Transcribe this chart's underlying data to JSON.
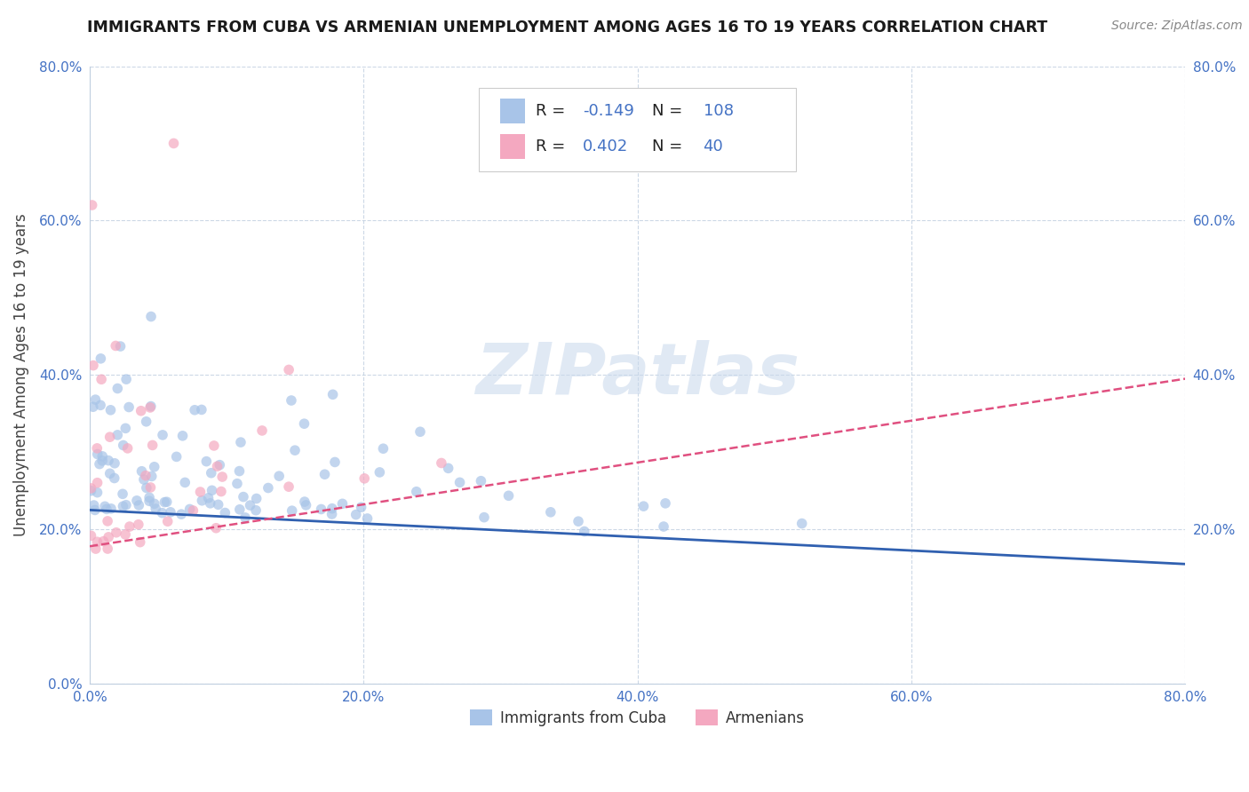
{
  "title": "IMMIGRANTS FROM CUBA VS ARMENIAN UNEMPLOYMENT AMONG AGES 16 TO 19 YEARS CORRELATION CHART",
  "source": "Source: ZipAtlas.com",
  "ylabel": "Unemployment Among Ages 16 to 19 years",
  "xlim": [
    0.0,
    0.8
  ],
  "ylim": [
    0.0,
    0.8
  ],
  "cuba_color": "#a8c4e8",
  "armenia_color": "#f4a8c0",
  "cuba_line_color": "#3060b0",
  "armenia_line_color": "#e05080",
  "tick_color": "#4472c4",
  "watermark_text": "ZIPatlas",
  "legend_r_cuba": "-0.149",
  "legend_n_cuba": "108",
  "legend_r_armenia": "0.402",
  "legend_n_armenia": "40",
  "cuba_trendline": [
    0.225,
    0.155
  ],
  "armenia_trendline": [
    0.178,
    0.395
  ],
  "cuba_seed": 42,
  "armenia_seed": 99,
  "bottom_legend_labels": [
    "Immigrants from Cuba",
    "Armenians"
  ]
}
